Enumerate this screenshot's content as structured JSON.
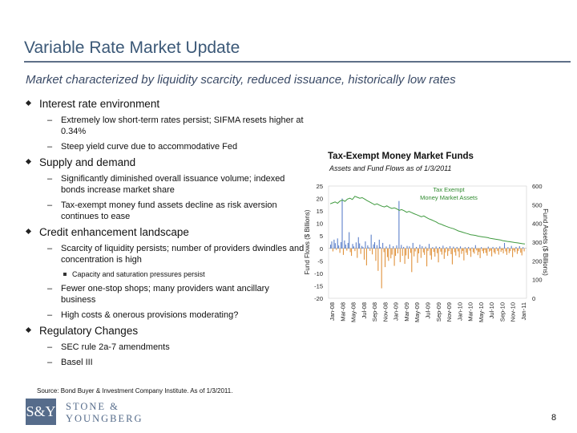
{
  "slide": {
    "title": "Variable Rate Market Update",
    "subtitle": "Market characterized by liquidity scarcity, reduced issuance, historically low rates",
    "source": "Source: Bond Buyer & Investment Company Institute. As of 1/3/2011.",
    "page_number": "8",
    "colors": {
      "title": "#3b5877",
      "rule": "#5f7088",
      "logo": "#566c8b"
    }
  },
  "bullets": [
    {
      "text": "Interest rate environment",
      "subs": [
        {
          "text": "Extremely low short-term rates persist; SIFMA resets higher at 0.34%"
        },
        {
          "text": "Steep yield curve due to accommodative Fed"
        }
      ]
    },
    {
      "text": "Supply and demand",
      "subs": [
        {
          "text": "Significantly diminished overall issuance volume; indexed bonds increase market share"
        },
        {
          "text": "Tax-exempt money fund assets decline as risk aversion continues to ease"
        }
      ]
    },
    {
      "text": "Credit enhancement landscape",
      "subs": [
        {
          "text": "Scarcity of liquidity persists; number of providers dwindles and concentration is high",
          "subs": [
            {
              "text": "Capacity and saturation pressures persist"
            }
          ]
        },
        {
          "text": "Fewer one-stop shops; many providers want ancillary business"
        },
        {
          "text": "High costs & onerous provisions moderating?"
        }
      ]
    },
    {
      "text": "Regulatory Changes",
      "subs": [
        {
          "text": "SEC rule 2a-7 amendments"
        },
        {
          "text": "Basel III"
        }
      ]
    }
  ],
  "logo": {
    "monogram": "S&Y",
    "line1": "STONE &",
    "line2": "YOUNGBERG"
  },
  "chart": {
    "title": "Tax-Exempt Money Market Funds",
    "subtitle": "Assets and Fund Flows as of 1/3/2011"
  },
  "chart_data": {
    "type": "bar",
    "title": "Tax-Exempt Money Market Funds",
    "subtitle": "Assets and Fund Flows as of 1/3/2011",
    "ylabel": "Fund Flows ($ Billions)",
    "y2label": "Fund Assets ($ Billions)",
    "ylim": [
      -20,
      25
    ],
    "y2lim": [
      0,
      600
    ],
    "yticks": [
      "25",
      "20",
      "15",
      "10",
      "5",
      "0",
      "-5",
      "-10",
      "-15",
      "-20"
    ],
    "y2ticks": [
      "600",
      "500",
      "400",
      "300",
      "200",
      "100",
      "0"
    ],
    "xticks": [
      "Jan-08",
      "Mar-08",
      "May-08",
      "Jul-08",
      "Sep-08",
      "Nov-08",
      "Jan-09",
      "Mar-09",
      "May-09",
      "Jul-09",
      "Sep-09",
      "Nov-09",
      "Jan-10",
      "Mar-10",
      "May-10",
      "Jul-10",
      "Sep-10",
      "Nov-10",
      "Jan-11"
    ],
    "line_label": "Tax Exempt Money Market Assets",
    "series": [
      {
        "name": "Fund Flows",
        "kind": "bar",
        "values": [
          1.5,
          2.8,
          -1.2,
          3.5,
          2.1,
          -0.6,
          4.0,
          1.2,
          -1.8,
          2.5,
          20.0,
          -2.6,
          3.2,
          1.5,
          -0.9,
          2.2,
          6.5,
          -1.5,
          -3.0,
          1.8,
          0.8,
          -1.1,
          2.4,
          -3.8,
          4.5,
          2.0,
          -2.2,
          1.0,
          0.5,
          -4.5,
          2.8,
          -6.8,
          1.2,
          0.4,
          -1.0,
          5.5,
          -2.4,
          1.6,
          2.5,
          -5.0,
          1.3,
          -9.0,
          3.5,
          0.6,
          -16.0,
          2.2,
          -1.5,
          -7.5,
          0.8,
          -3.5,
          -5.0,
          1.6,
          -4.0,
          -2.5,
          0.9,
          -7.0,
          -3.0,
          1.2,
          -2.0,
          19.0,
          -5.5,
          1.4,
          -3.0,
          0.6,
          -6.2,
          -2.8,
          1.0,
          -4.2,
          0.8,
          -1.8,
          -9.5,
          2.2,
          -3.2,
          -1.2,
          0.6,
          -5.8,
          -2.0,
          1.5,
          -3.8,
          0.9,
          -1.6,
          -2.6,
          0.7,
          -7.2,
          -1.0,
          1.8,
          -2.8,
          -4.5,
          0.5,
          -1.4,
          -3.3,
          0.8,
          -1.9,
          -5.6,
          0.6,
          -1.3,
          -2.5,
          1.1,
          -4.2,
          -1.6,
          0.5,
          -3.0,
          -1.1,
          0.9,
          -2.3,
          -6.4,
          0.7,
          -1.5,
          -2.9,
          0.6,
          -1.2,
          -3.6,
          0.8,
          -2.2,
          -1.0,
          -4.8,
          0.5,
          -1.7,
          -2.6,
          0.6,
          -0.9,
          -3.4,
          0.4,
          -1.5,
          -2.1,
          1.3,
          -0.8,
          -2.7,
          -1.4,
          -3.9,
          0.5,
          -1.1,
          -2.0,
          -0.6,
          -1.8,
          -2.9,
          0.7,
          -1.3,
          -0.9,
          -3.2,
          0.6,
          -1.6,
          -2.2,
          0.4,
          -1.0,
          -2.5,
          0.8,
          -1.4,
          -0.7,
          -2.0,
          2.2,
          -1.2,
          -2.6,
          0.5,
          -1.9,
          -1.1,
          1.0,
          -3.5,
          -0.8,
          -1.5,
          0.6,
          -2.2,
          -1.0,
          0.9,
          -1.7,
          -2.8,
          0.5,
          -1.2
        ]
      },
      {
        "name": "Tax Exempt Money Market Assets",
        "kind": "line",
        "axis": "y2",
        "values": [
          505,
          510,
          515,
          508,
          520,
          525,
          518,
          530,
          535,
          528,
          545,
          540,
          535,
          538,
          530,
          522,
          515,
          508,
          500,
          505,
          498,
          492,
          488,
          494,
          486,
          480,
          484,
          478,
          470,
          474,
          468,
          460,
          464,
          458,
          452,
          447,
          442,
          436,
          440,
          432,
          425,
          420,
          414,
          408,
          400,
          396,
          390,
          385,
          380,
          376,
          372,
          366,
          360,
          356,
          352,
          348,
          344,
          340,
          338,
          336,
          332,
          330,
          328,
          326,
          324,
          320,
          318,
          316,
          314,
          312,
          308,
          306,
          304,
          302,
          300,
          298,
          296,
          294,
          292,
          290
        ]
      }
    ]
  }
}
